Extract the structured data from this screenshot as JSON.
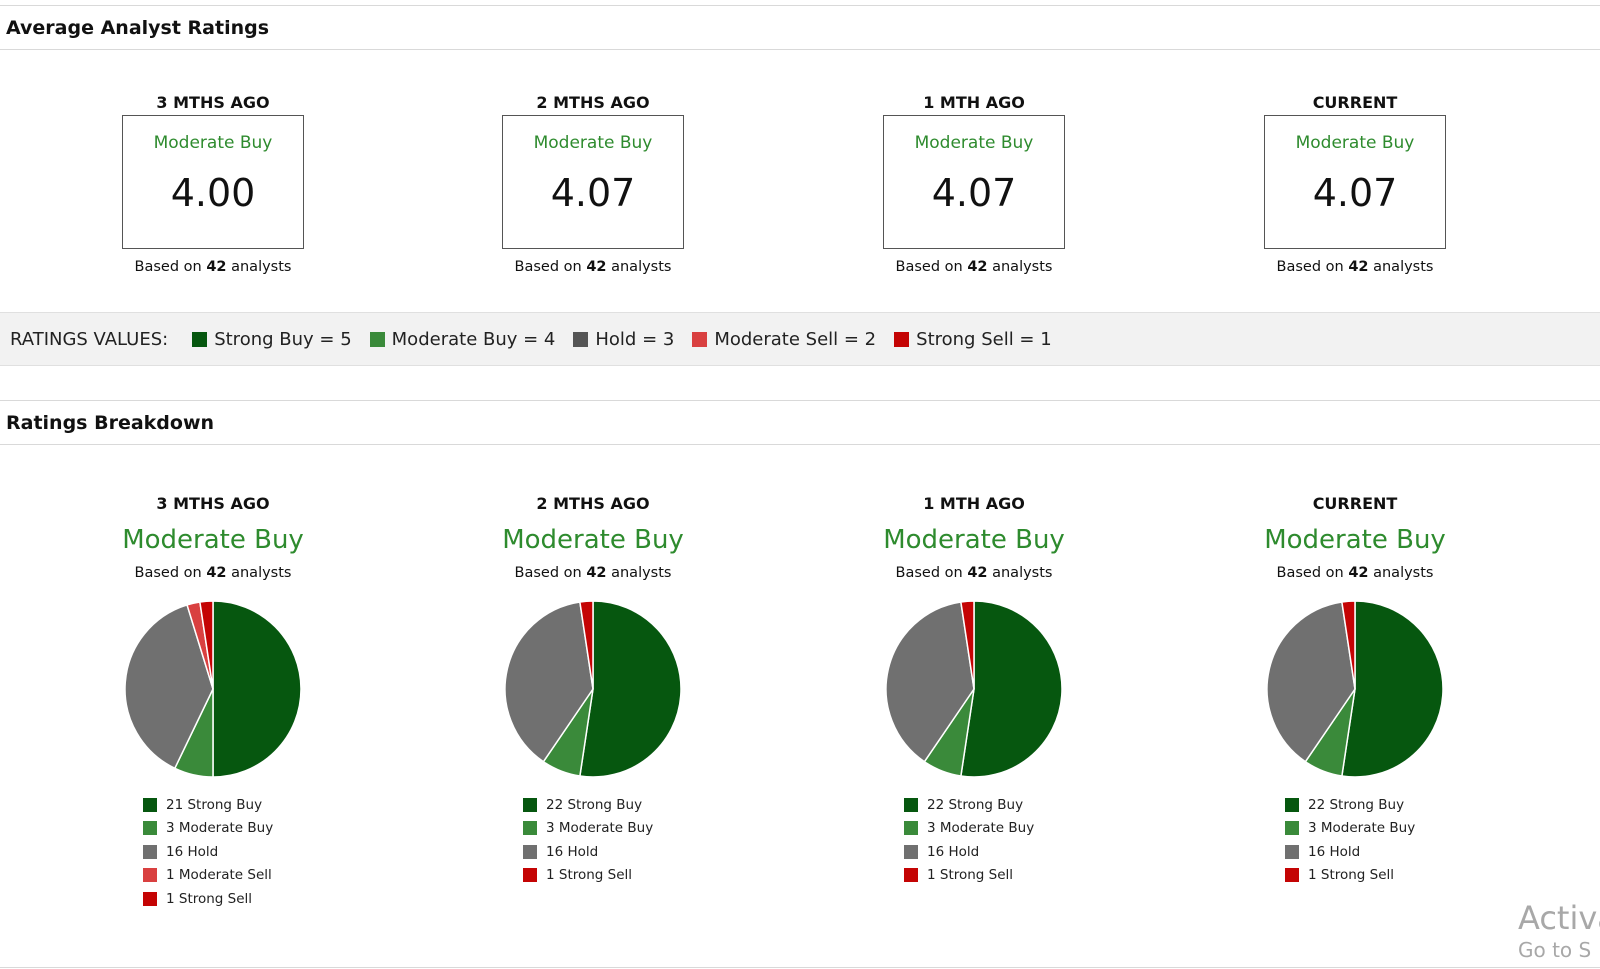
{
  "sections": {
    "average_title": "Average Analyst Ratings",
    "breakdown_title": "Ratings Breakdown"
  },
  "based_prefix": "Based on",
  "based_suffix": "analysts",
  "periods": [
    {
      "label": "3 MTHS AGO",
      "rating": "Moderate Buy",
      "score": "4.00",
      "analysts": "42"
    },
    {
      "label": "2 MTHS AGO",
      "rating": "Moderate Buy",
      "score": "4.07",
      "analysts": "42"
    },
    {
      "label": "1 MTH AGO",
      "rating": "Moderate Buy",
      "score": "4.07",
      "analysts": "42"
    },
    {
      "label": "CURRENT",
      "rating": "Moderate Buy",
      "score": "4.07",
      "analysts": "42"
    }
  ],
  "ratings_values": {
    "title": "RATINGS VALUES:",
    "items": [
      {
        "label": "Strong Buy = 5",
        "color": "#06570f"
      },
      {
        "label": "Moderate Buy = 4",
        "color": "#3a8a3a"
      },
      {
        "label": "Hold = 3",
        "color": "#555555"
      },
      {
        "label": "Moderate Sell = 2",
        "color": "#d94040"
      },
      {
        "label": "Strong Sell = 1",
        "color": "#c40404"
      }
    ]
  },
  "colors": {
    "Strong Buy": "#06570f",
    "Moderate Buy": "#3a8a3a",
    "Hold": "#707070",
    "Moderate Sell": "#d94040",
    "Strong Sell": "#c40404",
    "rating_text": "#2e8b2e"
  },
  "chart_data": [
    {
      "type": "pie",
      "title": "3 MTHS AGO",
      "labels": [
        "Strong Buy",
        "Moderate Buy",
        "Hold",
        "Moderate Sell",
        "Strong Sell"
      ],
      "values": [
        21,
        3,
        16,
        1,
        1
      ],
      "legend": [
        "21 Strong Buy",
        "3 Moderate Buy",
        "16 Hold",
        "1 Moderate Sell",
        "1 Strong Sell"
      ]
    },
    {
      "type": "pie",
      "title": "2 MTHS AGO",
      "labels": [
        "Strong Buy",
        "Moderate Buy",
        "Hold",
        "Strong Sell"
      ],
      "values": [
        22,
        3,
        16,
        1
      ],
      "legend": [
        "22 Strong Buy",
        "3 Moderate Buy",
        "16 Hold",
        "1 Strong Sell"
      ]
    },
    {
      "type": "pie",
      "title": "1 MTH AGO",
      "labels": [
        "Strong Buy",
        "Moderate Buy",
        "Hold",
        "Strong Sell"
      ],
      "values": [
        22,
        3,
        16,
        1
      ],
      "legend": [
        "22 Strong Buy",
        "3 Moderate Buy",
        "16 Hold",
        "1 Strong Sell"
      ]
    },
    {
      "type": "pie",
      "title": "CURRENT",
      "labels": [
        "Strong Buy",
        "Moderate Buy",
        "Hold",
        "Strong Sell"
      ],
      "values": [
        22,
        3,
        16,
        1
      ],
      "legend": [
        "22 Strong Buy",
        "3 Moderate Buy",
        "16 Hold",
        "1 Strong Sell"
      ]
    }
  ],
  "watermark": {
    "line1": "Activa",
    "line2": "Go to S"
  }
}
